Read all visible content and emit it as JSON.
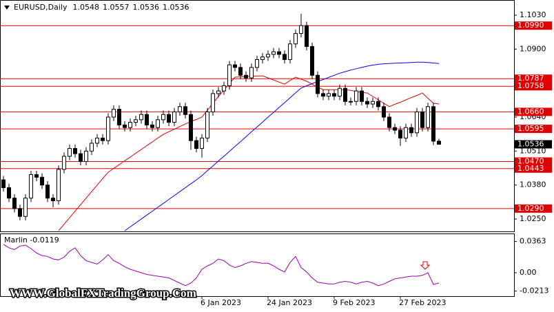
{
  "chart_data": {
    "type": "candlestick",
    "title": "EURUSD,Daily",
    "categories": [
      null,
      null,
      null,
      null,
      null,
      null,
      null,
      null,
      null,
      null,
      null,
      null,
      null,
      null,
      null,
      null,
      null,
      null,
      null,
      null,
      null,
      null,
      null,
      null,
      null,
      null,
      null,
      null,
      null,
      null,
      null,
      null,
      null,
      null,
      null,
      null,
      "6 Jan 2023",
      null,
      null,
      null,
      null,
      null,
      null,
      null,
      null,
      null,
      null,
      null,
      "24 Jan 2023",
      null,
      null,
      null,
      null,
      null,
      null,
      null,
      null,
      null,
      null,
      null,
      "9 Feb 2023",
      null,
      null,
      null,
      null,
      null,
      null,
      null,
      null,
      null,
      null,
      null,
      "27 Feb 2023",
      null,
      null,
      null,
      null,
      null,
      null,
      null
    ],
    "open": [
      1.04,
      1.037,
      1.033,
      1.029,
      1.026,
      1.033,
      1.042,
      1.041,
      1.038,
      1.033,
      1.032,
      1.044,
      1.049,
      1.052,
      1.05,
      1.047,
      1.051,
      1.054,
      1.056,
      1.055,
      1.064,
      1.067,
      1.061,
      1.06,
      1.062,
      1.063,
      1.065,
      1.061,
      1.06,
      1.063,
      1.065,
      1.062,
      1.066,
      1.068,
      1.065,
      1.055,
      1.052,
      1.056,
      1.066,
      1.073,
      1.074,
      1.076,
      1.084,
      1.083,
      1.08,
      1.079,
      1.083,
      1.086,
      1.087,
      1.088,
      1.089,
      1.088,
      1.086,
      1.092,
      1.096,
      1.099,
      1.091,
      1.08,
      1.073,
      1.072,
      1.073,
      1.072,
      1.075,
      1.07,
      1.07,
      1.074,
      1.07,
      1.069,
      1.07,
      1.068,
      1.064,
      1.06,
      1.059,
      1.056,
      1.06,
      1.058,
      1.066,
      1.06,
      1.068,
      1.0548
    ],
    "high": [
      1.0415,
      1.0385,
      1.0345,
      1.0305,
      1.0345,
      1.0435,
      1.0435,
      1.0425,
      1.0395,
      1.0345,
      1.0455,
      1.0505,
      1.0535,
      1.0535,
      1.0515,
      1.0525,
      1.0555,
      1.0575,
      1.0575,
      1.0655,
      1.0685,
      1.0685,
      1.0625,
      1.0635,
      1.0645,
      1.0665,
      1.0665,
      1.0625,
      1.0645,
      1.0665,
      1.0665,
      1.0675,
      1.0695,
      1.0695,
      1.0665,
      1.0565,
      1.0575,
      1.0675,
      1.0745,
      1.0755,
      1.0775,
      1.0855,
      1.0855,
      1.0845,
      1.0815,
      1.0845,
      1.0875,
      1.0885,
      1.0895,
      1.0905,
      1.0905,
      1.0895,
      1.0935,
      1.0975,
      1.1035,
      1.1005,
      1.0925,
      1.0815,
      1.0745,
      1.0745,
      1.0745,
      1.0765,
      1.0765,
      1.0715,
      1.0755,
      1.0755,
      1.0715,
      1.0715,
      1.0715,
      1.0695,
      1.0655,
      1.0615,
      1.0605,
      1.0615,
      1.0615,
      1.0675,
      1.0675,
      1.0695,
      1.0695,
      1.0557
    ],
    "low": [
      1.0355,
      1.0315,
      1.0275,
      1.0245,
      1.0245,
      1.0315,
      1.0395,
      1.0365,
      1.0315,
      1.0295,
      1.0305,
      1.0425,
      1.0475,
      1.0485,
      1.0455,
      1.0455,
      1.0495,
      1.0525,
      1.0535,
      1.0535,
      1.0625,
      1.0595,
      1.0585,
      1.0585,
      1.0605,
      1.0615,
      1.0595,
      1.0585,
      1.0585,
      1.0615,
      1.0605,
      1.0605,
      1.0645,
      1.0635,
      1.0515,
      1.0505,
      1.0485,
      1.0545,
      1.0645,
      1.0715,
      1.0725,
      1.0745,
      1.0815,
      1.0785,
      1.0775,
      1.0775,
      1.0815,
      1.0845,
      1.0855,
      1.0865,
      1.0865,
      1.0845,
      1.0845,
      1.0905,
      1.0945,
      1.0895,
      1.0785,
      1.0715,
      1.0705,
      1.0705,
      1.0705,
      1.0705,
      1.0685,
      1.0685,
      1.0685,
      1.0685,
      1.0675,
      1.0675,
      1.0665,
      1.0625,
      1.0585,
      1.0575,
      1.053,
      1.0545,
      1.0565,
      1.0565,
      1.0585,
      1.0585,
      1.0533,
      1.0536
    ],
    "close": [
      1.037,
      1.033,
      1.029,
      1.026,
      1.033,
      1.042,
      1.041,
      1.038,
      1.033,
      1.032,
      1.044,
      1.049,
      1.052,
      1.05,
      1.047,
      1.051,
      1.054,
      1.056,
      1.055,
      1.064,
      1.067,
      1.061,
      1.06,
      1.062,
      1.063,
      1.065,
      1.061,
      1.06,
      1.063,
      1.065,
      1.062,
      1.066,
      1.068,
      1.065,
      1.055,
      1.052,
      1.056,
      1.066,
      1.073,
      1.074,
      1.076,
      1.084,
      1.083,
      1.08,
      1.079,
      1.083,
      1.086,
      1.087,
      1.088,
      1.089,
      1.088,
      1.086,
      1.092,
      1.096,
      1.099,
      1.091,
      1.08,
      1.073,
      1.072,
      1.073,
      1.072,
      1.075,
      1.07,
      1.07,
      1.074,
      1.07,
      1.069,
      1.07,
      1.068,
      1.064,
      1.06,
      1.059,
      1.056,
      1.06,
      1.058,
      1.066,
      1.06,
      1.068,
      1.0548,
      1.0536
    ],
    "up_color": "#ffffff",
    "down_color": "#000000",
    "ylim": [
      1.02,
      1.1088
    ],
    "yticks": [
      {
        "value": 1.103,
        "label": "1.1030"
      },
      {
        "value": 1.09,
        "label": "1.0900"
      },
      {
        "value": 1.064,
        "label": "1.0640"
      },
      {
        "value": 1.051,
        "label": "1.0510"
      },
      {
        "value": 1.038,
        "label": "1.0380"
      },
      {
        "value": 1.025,
        "label": "1.0250"
      }
    ],
    "level_color": "#e00000",
    "levels": [
      {
        "value": 1.099,
        "label": "1.0990"
      },
      {
        "value": 1.0787,
        "label": "1.0787"
      },
      {
        "value": 1.0758,
        "label": "1.0758"
      },
      {
        "value": 1.066,
        "label": "1.0660"
      },
      {
        "value": 1.0595,
        "label": "1.0595"
      },
      {
        "value": 1.047,
        "label": "1.0470"
      },
      {
        "value": 1.0443,
        "label": "1.0443"
      },
      {
        "value": 1.029,
        "label": "1.0290"
      }
    ],
    "overlays": [
      {
        "color": "#e00000",
        "values": [
          null,
          null,
          null,
          null,
          null,
          null,
          null,
          null,
          null,
          null,
          1.0205,
          1.023,
          1.0255,
          1.028,
          1.0305,
          1.033,
          1.0355,
          1.038,
          1.0405,
          1.0429,
          1.0444,
          1.0458,
          1.0473,
          1.0487,
          1.0502,
          1.0516,
          1.0531,
          1.0545,
          1.056,
          1.0574,
          1.0584,
          1.0594,
          1.0604,
          1.0614,
          1.0623,
          1.0631,
          1.064,
          1.0666,
          1.0693,
          1.0719,
          1.0744,
          1.0768,
          1.0793,
          1.0794,
          1.0795,
          1.0796,
          1.0797,
          1.0798,
          1.079,
          1.0782,
          1.0774,
          1.0766,
          1.078,
          1.0793,
          1.0785,
          1.0777,
          1.0766,
          1.0755,
          1.0745,
          1.0745,
          1.0745,
          1.0745,
          1.0745,
          1.0742,
          1.0738,
          1.0735,
          1.0732,
          1.0719,
          1.0706,
          1.0693,
          1.068,
          1.0689,
          1.0697,
          1.0706,
          1.0715,
          1.0723,
          1.0732,
          1.0712,
          1.0693,
          1.069
        ]
      },
      {
        "color": "#0000ff",
        "values": [
          null,
          null,
          null,
          null,
          null,
          null,
          null,
          null,
          null,
          null,
          null,
          null,
          null,
          null,
          null,
          null,
          null,
          null,
          null,
          null,
          null,
          null,
          1.0205,
          1.022,
          1.0235,
          1.025,
          1.0265,
          1.028,
          1.0295,
          1.031,
          1.0325,
          1.034,
          1.0355,
          1.037,
          1.0385,
          1.04,
          1.0416,
          1.0435,
          1.0453,
          1.0472,
          1.049,
          1.0509,
          1.0528,
          1.0546,
          1.0565,
          1.0584,
          1.0602,
          1.0621,
          1.064,
          1.0658,
          1.0677,
          1.0695,
          1.0714,
          1.0733,
          1.0751,
          1.076,
          1.0768,
          1.0776,
          1.0784,
          1.0792,
          1.08,
          1.0808,
          1.0814,
          1.082,
          1.0825,
          1.083,
          1.0835,
          1.0839,
          1.0842,
          1.0844,
          1.0845,
          1.0846,
          1.0847,
          1.0848,
          1.0849,
          1.085,
          1.085,
          1.0849,
          1.0847,
          1.0845
        ]
      }
    ],
    "indicator": {
      "type": "line",
      "title": "Marlin -0.0119",
      "color": "#9900aa",
      "ylim": [
        -0.0272,
        0.0448
      ],
      "yticks": [
        {
          "value": 0.0363,
          "label": "0.0363"
        },
        {
          "value": 0,
          "label": "0.00"
        },
        {
          "value": -0.0213,
          "label": "-0.0213"
        }
      ],
      "values": [
        0.033,
        0.029,
        0.027,
        0.031,
        0.032,
        0.028,
        0.023,
        0.02,
        0.019,
        0.016,
        0.015,
        0.018,
        0.025,
        0.029,
        0.02,
        0.014,
        0.012,
        0.01,
        0.015,
        0.021,
        0.014,
        0.011,
        0.007,
        0.004,
        0.002,
        0.0,
        -0.002,
        -0.003,
        -0.004,
        -0.005,
        -0.006,
        -0.009,
        -0.012,
        -0.015,
        -0.012,
        -0.006,
        0.004,
        0.008,
        0.011,
        0.016,
        0.014,
        0.009,
        0.006,
        0.008,
        0.011,
        0.013,
        0.012,
        0.011,
        0.011,
        0.008,
        0.004,
        0.001,
        0.012,
        0.019,
        0.006,
        0.001,
        -0.006,
        -0.011,
        -0.012,
        -0.013,
        -0.013,
        -0.011,
        -0.01,
        -0.011,
        -0.013,
        -0.011,
        -0.01,
        -0.012,
        -0.015,
        -0.013,
        -0.01,
        -0.007,
        -0.006,
        -0.005,
        -0.004,
        -0.004,
        -0.003,
        0.0,
        -0.0136,
        -0.0119
      ]
    },
    "watermark": "WWW.GlobalFXTradingGroup.Com"
  }
}
